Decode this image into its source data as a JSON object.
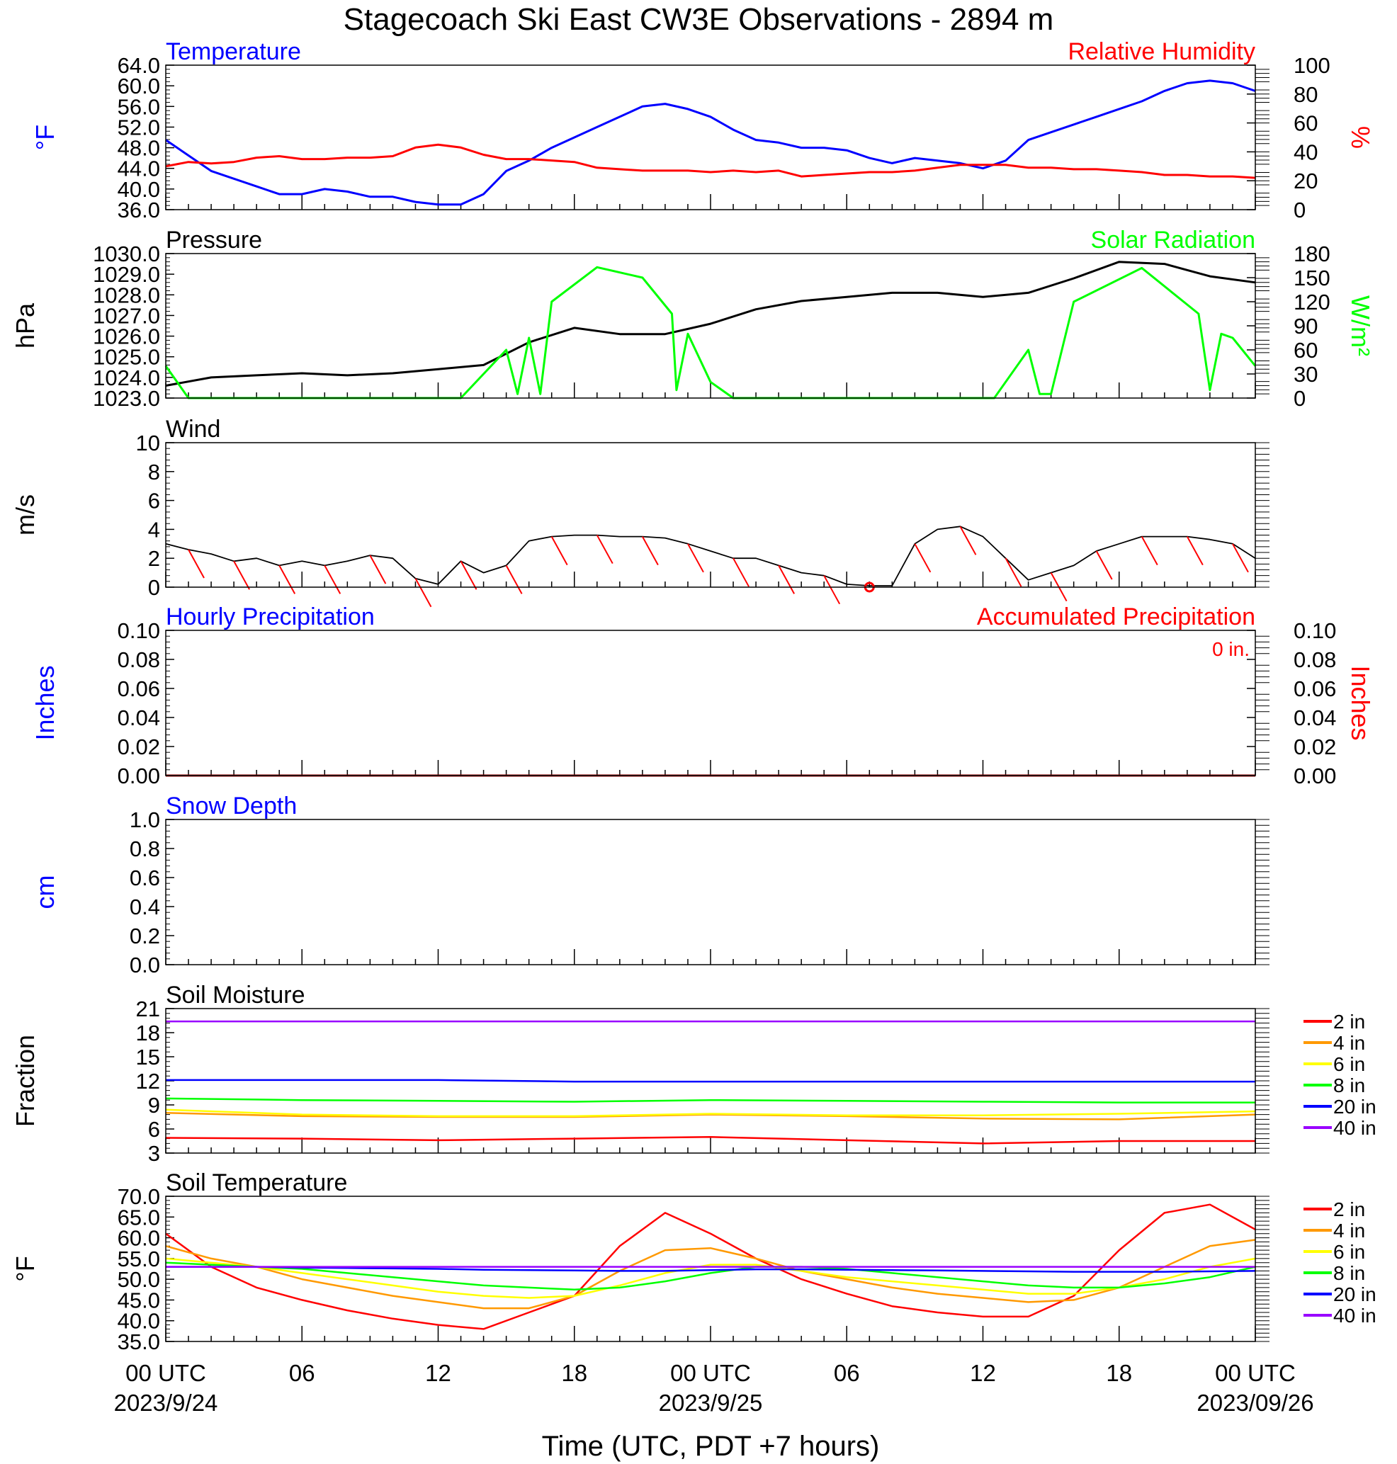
{
  "title": "Stagecoach Ski East CW3E Observations - 2894 m",
  "colors": {
    "temperature": "#0000ff",
    "humidity": "#ff0000",
    "pressure": "#000000",
    "solar": "#00ff00",
    "wind": "#000000",
    "wind_barb": "#ff0000",
    "soil_2in": "#ff0000",
    "soil_4in": "#ff9900",
    "soil_6in": "#ffff00",
    "soil_8in": "#00ff00",
    "soil_20in": "#0000ff",
    "soil_40in": "#9900ff"
  },
  "x_axis": {
    "tick_labels": [
      "00 UTC",
      "06",
      "12",
      "18",
      "00 UTC",
      "06",
      "12",
      "18",
      "00 UTC"
    ],
    "dates": [
      "2023/9/24",
      "2023/9/25",
      "2023/09/26"
    ],
    "title": "Time (UTC, PDT +7 hours)"
  },
  "chart_data": [
    {
      "type": "line",
      "panel_titles": {
        "left": "Temperature",
        "right": "Relative Humidity"
      },
      "ylabel_left": "°F",
      "ylabel_right": "%",
      "ylim_left": [
        36,
        64
      ],
      "ylim_right": [
        0,
        100
      ],
      "yticks_left": [
        "64.0",
        "60.0",
        "56.0",
        "52.0",
        "48.0",
        "44.0",
        "40.0",
        "36.0"
      ],
      "yticks_right": [
        "100",
        "80",
        "60",
        "40",
        "20",
        "0"
      ],
      "x_hours": [
        0,
        1,
        2,
        3,
        4,
        5,
        6,
        7,
        8,
        9,
        10,
        11,
        12,
        13,
        14,
        15,
        16,
        17,
        18,
        19,
        20,
        21,
        22,
        23,
        24,
        25,
        26,
        27,
        28,
        29,
        30,
        31,
        32,
        33,
        34,
        35,
        36,
        37,
        38,
        39,
        40,
        41,
        42,
        43,
        44,
        45,
        46,
        47,
        48
      ],
      "series": [
        {
          "name": "Temperature",
          "axis": "left",
          "values": [
            49.5,
            46.5,
            43.5,
            42.0,
            40.5,
            39.0,
            39.0,
            40.0,
            39.5,
            38.5,
            38.5,
            37.5,
            37.0,
            37.0,
            39.0,
            43.5,
            45.5,
            48.0,
            50.0,
            52.0,
            54.0,
            56.0,
            56.5,
            55.5,
            54.0,
            51.5,
            49.5,
            49.0,
            48.0,
            48.0,
            47.5,
            46.0,
            45.0,
            46.0,
            45.5,
            45.0,
            44.0,
            45.5,
            49.5,
            51.0,
            52.5,
            54.0,
            55.5,
            57.0,
            59.0,
            60.5,
            61.0,
            60.5,
            59.0
          ]
        },
        {
          "name": "Relative Humidity",
          "axis": "right",
          "values": [
            30,
            33,
            32,
            33,
            36,
            37,
            35,
            35,
            36,
            36,
            37,
            43,
            45,
            43,
            38,
            35,
            35,
            34,
            33,
            29,
            28,
            27,
            27,
            27,
            26,
            27,
            26,
            27,
            23,
            24,
            25,
            26,
            26,
            27,
            29,
            31,
            31,
            31,
            29,
            29,
            28,
            28,
            27,
            26,
            24,
            24,
            23,
            23,
            22
          ]
        }
      ]
    },
    {
      "type": "line",
      "panel_titles": {
        "left": "Pressure",
        "right": "Solar Radiation"
      },
      "ylabel_left": "hPa",
      "ylabel_right": "W/m²",
      "ylim_left": [
        1023,
        1030
      ],
      "ylim_right": [
        0,
        180
      ],
      "yticks_left": [
        "1030.0",
        "1029.0",
        "1028.0",
        "1027.0",
        "1026.0",
        "1025.0",
        "1024.0",
        "1023.0"
      ],
      "yticks_right": [
        "180",
        "150",
        "120",
        "90",
        "60",
        "30",
        "0"
      ],
      "series": [
        {
          "name": "Pressure",
          "axis": "left",
          "x_hours": [
            0,
            2,
            4,
            6,
            8,
            10,
            12,
            14,
            16,
            18,
            20,
            22,
            24,
            26,
            28,
            30,
            32,
            34,
            36,
            38,
            40,
            42,
            44,
            46,
            48
          ],
          "values": [
            1023.6,
            1024.0,
            1024.1,
            1024.2,
            1024.1,
            1024.2,
            1024.4,
            1024.6,
            1025.7,
            1026.4,
            1026.1,
            1026.1,
            1026.6,
            1027.3,
            1027.7,
            1027.9,
            1028.1,
            1028.1,
            1027.9,
            1028.1,
            1028.8,
            1029.6,
            1029.5,
            1028.9,
            1028.6
          ]
        },
        {
          "name": "Solar Radiation",
          "axis": "right",
          "x_hours": [
            0,
            0.5,
            1,
            13,
            15,
            15.5,
            16,
            16.5,
            17,
            19,
            21,
            22.3,
            22.5,
            23,
            24,
            25,
            36.5,
            38,
            38.5,
            39,
            40,
            43,
            45.5,
            46,
            46.5,
            47,
            48
          ],
          "values": [
            40,
            20,
            0,
            0,
            60,
            5,
            75,
            5,
            120,
            163,
            150,
            105,
            10,
            80,
            20,
            0,
            0,
            60,
            5,
            5,
            120,
            162,
            105,
            10,
            80,
            75,
            40
          ]
        }
      ]
    },
    {
      "type": "line",
      "panel_titles": {
        "left": "Wind"
      },
      "ylabel_left": "m/s",
      "ylim_left": [
        0,
        10
      ],
      "yticks_left": [
        "10",
        "8",
        "6",
        "4",
        "2",
        "0"
      ],
      "x_hours": [
        0,
        1,
        2,
        3,
        4,
        5,
        6,
        7,
        8,
        9,
        10,
        11,
        12,
        13,
        14,
        15,
        16,
        17,
        18,
        19,
        20,
        21,
        22,
        23,
        24,
        25,
        26,
        27,
        28,
        29,
        30,
        31,
        32,
        33,
        34,
        35,
        36,
        37,
        38,
        39,
        40,
        41,
        42,
        43,
        44,
        45,
        46,
        47,
        48
      ],
      "series": [
        {
          "name": "Wind Speed",
          "values": [
            3.0,
            2.6,
            2.3,
            1.8,
            2.0,
            1.5,
            1.8,
            1.5,
            1.8,
            2.2,
            2.0,
            0.6,
            0.2,
            1.8,
            1.0,
            1.5,
            3.2,
            3.5,
            3.6,
            3.6,
            3.5,
            3.5,
            3.4,
            3.0,
            2.5,
            2.0,
            2.0,
            1.5,
            1.0,
            0.8,
            0.2,
            0.1,
            0.1,
            3.0,
            4.0,
            4.2,
            3.5,
            2.0,
            0.5,
            1.0,
            1.5,
            2.5,
            3.0,
            3.5,
            3.5,
            3.5,
            3.3,
            3.0,
            2.0
          ]
        }
      ]
    },
    {
      "type": "line",
      "panel_titles": {
        "left": "Hourly Precipitation",
        "right": "Accumulated Precipitation"
      },
      "annotation": "0 in.",
      "ylabel_left": "Inches",
      "ylabel_right": "Inches",
      "ylim_left": [
        0,
        0.1
      ],
      "ylim_right": [
        0,
        0.1
      ],
      "yticks_left": [
        "0.10",
        "0.08",
        "0.06",
        "0.04",
        "0.02",
        "0.00"
      ],
      "yticks_right": [
        "0.10",
        "0.08",
        "0.06",
        "0.04",
        "0.02",
        "0.00"
      ],
      "series": [
        {
          "name": "Hourly Precipitation",
          "x_hours": [
            0,
            48
          ],
          "values": [
            0,
            0
          ]
        },
        {
          "name": "Accumulated Precipitation",
          "x_hours": [
            0,
            48
          ],
          "values": [
            0,
            0
          ]
        }
      ]
    },
    {
      "type": "line",
      "panel_titles": {
        "left": "Snow Depth"
      },
      "ylabel_left": "cm",
      "ylim_left": [
        0,
        1
      ],
      "yticks_left": [
        "1.0",
        "0.8",
        "0.6",
        "0.4",
        "0.2",
        "0.0"
      ],
      "series": []
    },
    {
      "type": "line",
      "panel_titles": {
        "left": "Soil Moisture"
      },
      "ylabel_left": "Fraction",
      "ylim_left": [
        3,
        21
      ],
      "yticks_left": [
        "21",
        "18",
        "15",
        "12",
        "9",
        "6",
        "3"
      ],
      "legend": [
        "2 in",
        "4 in",
        "6 in",
        "8 in",
        "20 in",
        "40 in"
      ],
      "x_hours": [
        0,
        6,
        12,
        18,
        24,
        30,
        36,
        42,
        48
      ],
      "series": [
        {
          "name": "2 in",
          "values": [
            4.9,
            4.8,
            4.6,
            4.8,
            5.0,
            4.6,
            4.2,
            4.5,
            4.5
          ]
        },
        {
          "name": "4 in",
          "values": [
            8.0,
            7.6,
            7.5,
            7.5,
            7.8,
            7.6,
            7.3,
            7.2,
            7.8
          ]
        },
        {
          "name": "6 in",
          "values": [
            8.4,
            7.8,
            7.6,
            7.6,
            7.9,
            7.7,
            7.7,
            7.9,
            8.2
          ]
        },
        {
          "name": "8 in",
          "values": [
            9.8,
            9.6,
            9.5,
            9.4,
            9.6,
            9.5,
            9.4,
            9.3,
            9.3
          ]
        },
        {
          "name": "20 in",
          "values": [
            12.1,
            12.1,
            12.1,
            11.9,
            11.9,
            11.9,
            11.9,
            11.9,
            11.9
          ]
        },
        {
          "name": "40 in",
          "values": [
            19.4,
            19.4,
            19.4,
            19.4,
            19.4,
            19.4,
            19.4,
            19.4,
            19.4
          ]
        }
      ]
    },
    {
      "type": "line",
      "panel_titles": {
        "left": "Soil Temperature"
      },
      "ylabel_left": "°F",
      "ylim_left": [
        35,
        70
      ],
      "yticks_left": [
        "70.0",
        "65.0",
        "60.0",
        "55.0",
        "50.0",
        "45.0",
        "40.0",
        "35.0"
      ],
      "legend": [
        "2 in",
        "4 in",
        "6 in",
        "8 in",
        "20 in",
        "40 in"
      ],
      "x_hours": [
        0,
        2,
        4,
        6,
        8,
        10,
        12,
        14,
        16,
        18,
        20,
        22,
        24,
        26,
        28,
        30,
        32,
        34,
        36,
        38,
        40,
        42,
        44,
        46,
        48
      ],
      "series": [
        {
          "name": "2 in",
          "values": [
            61,
            53,
            48,
            45,
            42.5,
            40.5,
            39,
            38,
            42,
            46,
            58,
            66,
            61,
            55,
            50,
            46.5,
            43.5,
            42,
            41,
            41,
            46,
            57,
            66,
            68,
            62
          ]
        },
        {
          "name": "4 in",
          "values": [
            58,
            55,
            53,
            50,
            48,
            46,
            44.5,
            43,
            43,
            46,
            52,
            57,
            57.5,
            55,
            52,
            50,
            48,
            46.5,
            45.5,
            44.5,
            45,
            48,
            53,
            58,
            59.5
          ]
        },
        {
          "name": "6 in",
          "values": [
            55,
            54,
            53,
            51.5,
            50,
            48.5,
            47,
            46,
            45.5,
            46,
            48.5,
            51.5,
            53.5,
            53.5,
            52,
            50.5,
            49.5,
            48.5,
            47.5,
            46.5,
            46.5,
            48,
            50,
            53,
            55
          ]
        },
        {
          "name": "8 in",
          "values": [
            54,
            53.5,
            53,
            52.5,
            51.5,
            50.5,
            49.5,
            48.5,
            48,
            47.5,
            48,
            49.5,
            51.5,
            53,
            53,
            52.5,
            51.5,
            50.5,
            49.5,
            48.5,
            48,
            48,
            49,
            50.5,
            53
          ]
        },
        {
          "name": "20 in",
          "values": [
            53,
            53,
            53,
            52.8,
            52.7,
            52.6,
            52.5,
            52.3,
            52.2,
            52.1,
            52,
            52,
            52.2,
            52.4,
            52.4,
            52.3,
            52.2,
            52.1,
            52,
            51.9,
            51.8,
            51.8,
            51.8,
            51.9,
            52
          ]
        },
        {
          "name": "40 in",
          "values": [
            53,
            53,
            53,
            53,
            53,
            53,
            53,
            53,
            53,
            53,
            53,
            53,
            53,
            53,
            53,
            53,
            53,
            53,
            53,
            53,
            53,
            53,
            53,
            53,
            53
          ]
        }
      ]
    }
  ]
}
